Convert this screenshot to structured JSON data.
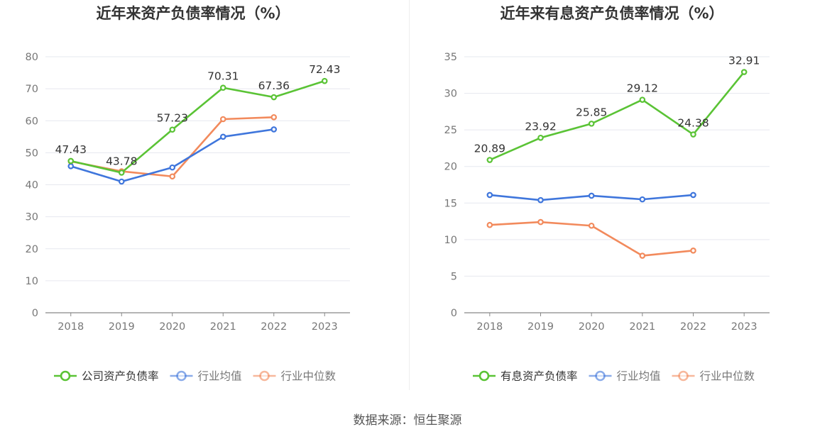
{
  "chart_data": [
    {
      "type": "line",
      "title": "近年来资产负债率情况（%）",
      "categories": [
        "2018",
        "2019",
        "2020",
        "2021",
        "2022",
        "2023"
      ],
      "ylim": [
        0,
        80
      ],
      "yticks": [
        0,
        10,
        20,
        30,
        40,
        50,
        60,
        70,
        80
      ],
      "grid": true,
      "legend_position": "bottom",
      "series": [
        {
          "name": "公司资产负债率",
          "color": "#5ac335",
          "values": [
            47.43,
            43.78,
            57.23,
            70.31,
            67.36,
            72.43
          ],
          "labels": [
            "47.43",
            "43.78",
            "57.23",
            "70.31",
            "67.36",
            "72.43"
          ]
        },
        {
          "name": "行业均值",
          "color": "#3f76dc",
          "values": [
            45.8,
            41.0,
            45.4,
            55.0,
            57.3,
            null
          ]
        },
        {
          "name": "行业中位数",
          "color": "#f28a5c",
          "values": [
            47.3,
            44.2,
            42.6,
            60.5,
            61.1,
            null
          ]
        }
      ]
    },
    {
      "type": "line",
      "title": "近年来有息资产负债率情况（%）",
      "categories": [
        "2018",
        "2019",
        "2020",
        "2021",
        "2022",
        "2023"
      ],
      "ylim": [
        0,
        35
      ],
      "yticks": [
        0,
        5,
        10,
        15,
        20,
        25,
        30,
        35
      ],
      "grid": true,
      "legend_position": "bottom",
      "series": [
        {
          "name": "有息资产负债率",
          "color": "#5ac335",
          "values": [
            20.89,
            23.92,
            25.85,
            29.12,
            24.38,
            32.91
          ],
          "labels": [
            "20.89",
            "23.92",
            "25.85",
            "29.12",
            "24.38",
            "32.91"
          ]
        },
        {
          "name": "行业均值",
          "color": "#3f76dc",
          "values": [
            16.1,
            15.4,
            16.0,
            15.5,
            16.1,
            null
          ]
        },
        {
          "name": "行业中位数",
          "color": "#f28a5c",
          "values": [
            12.0,
            12.4,
            11.9,
            7.8,
            8.5,
            null
          ]
        }
      ]
    }
  ],
  "source_text": "数据来源：恒生聚源"
}
